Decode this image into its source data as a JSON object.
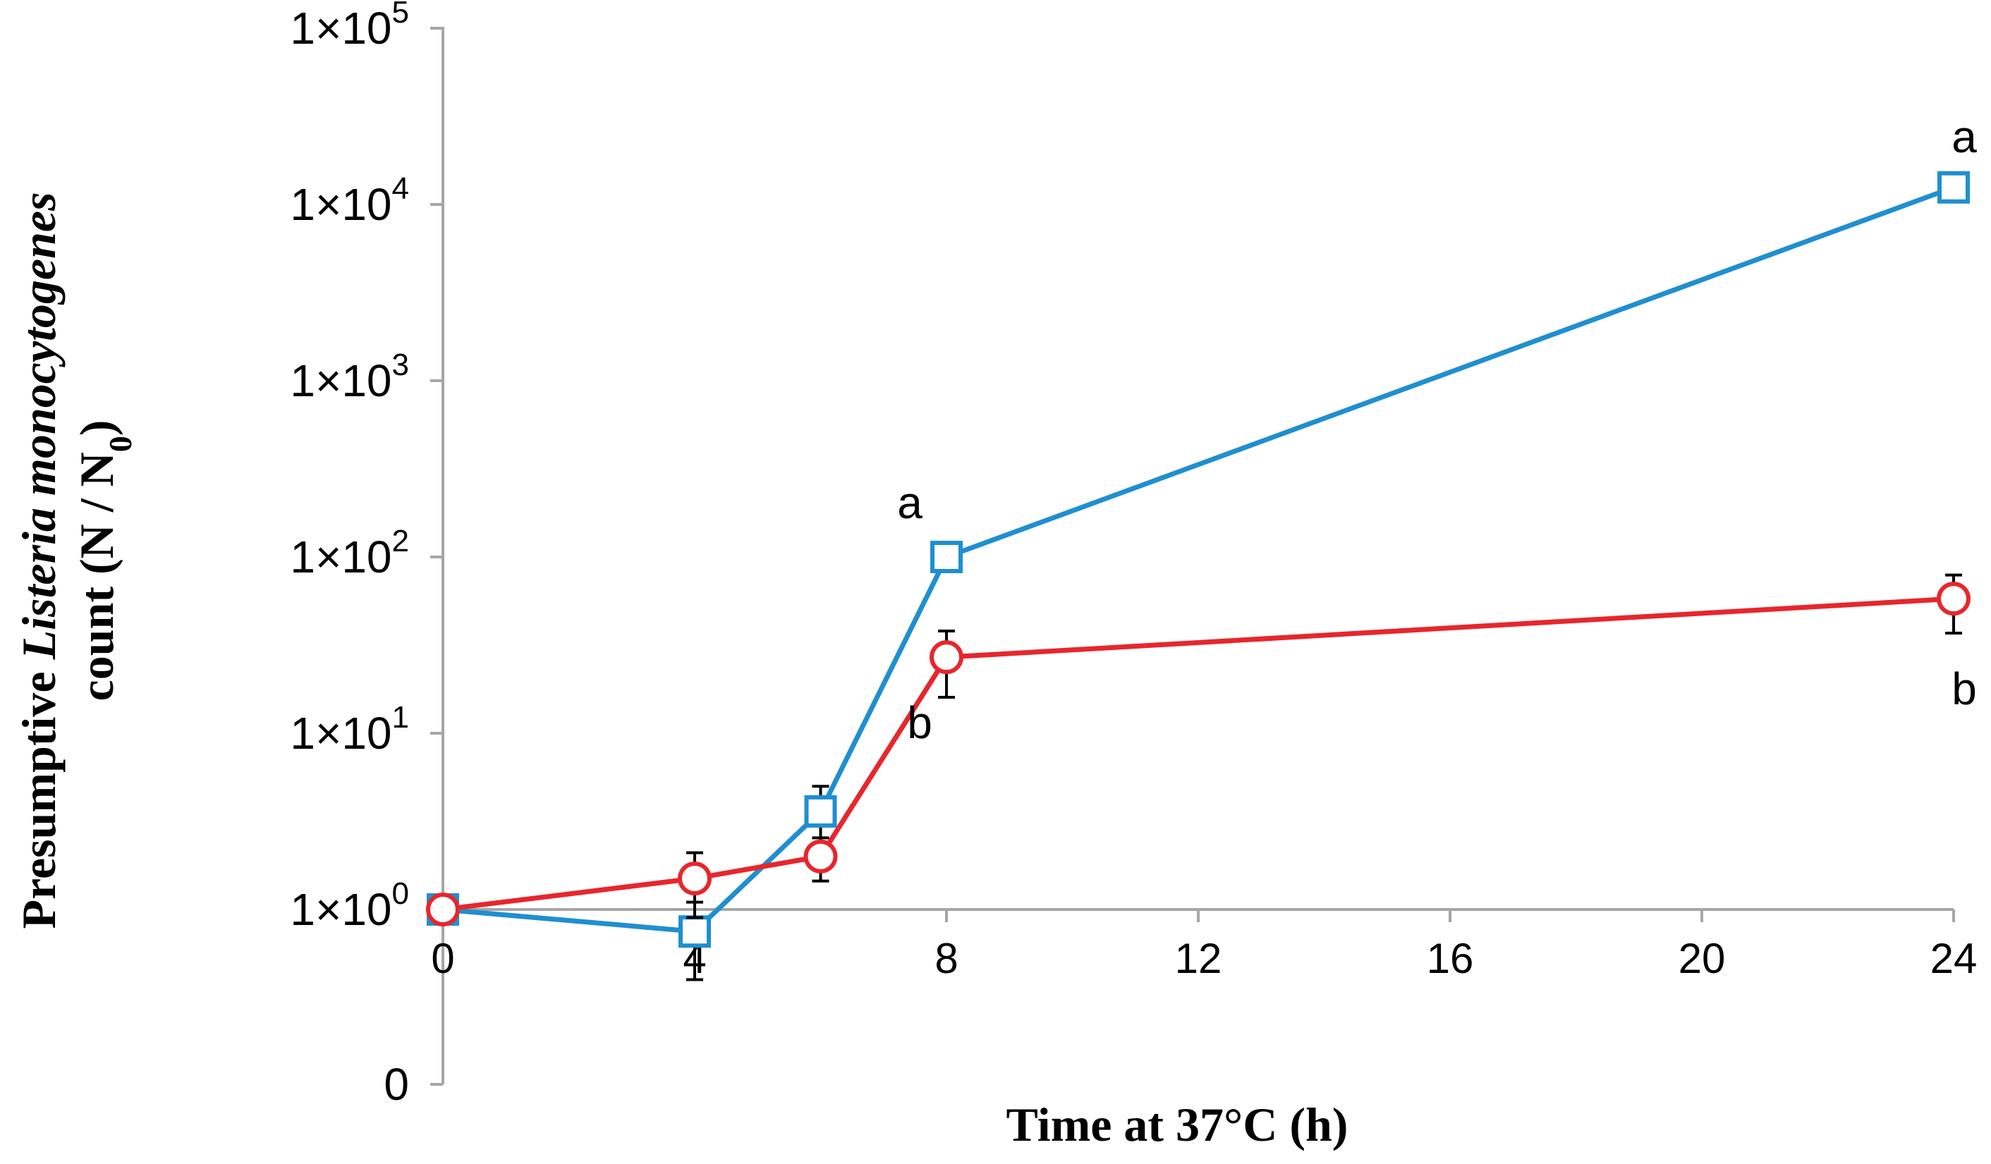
{
  "chart_data": {
    "type": "line",
    "yscale": "log",
    "title": "",
    "xlabel": "Time at 37°C (h)",
    "ylabel_line1": {
      "prefix": "Presumptive ",
      "italic": "Listeria monocytogenes"
    },
    "ylabel_line2": {
      "text": "count (N / N",
      "sub": "0",
      "suffix": ")"
    },
    "xlim": [
      0,
      24
    ],
    "x_ticks": [
      "0",
      "4",
      "8",
      "12",
      "16",
      "20",
      "24"
    ],
    "y_ticks": [
      {
        "label": "0"
      },
      {
        "base": "1×10",
        "exp": "0"
      },
      {
        "base": "1×10",
        "exp": "1"
      },
      {
        "base": "1×10",
        "exp": "2"
      },
      {
        "base": "1×10",
        "exp": "3"
      },
      {
        "base": "1×10",
        "exp": "4"
      },
      {
        "base": "1×10",
        "exp": "5"
      }
    ],
    "series": [
      {
        "name": "series-blue",
        "color": "#1F8FD0",
        "marker": "square",
        "points": [
          {
            "x": 0,
            "y": 1.0,
            "err": 0
          },
          {
            "x": 4,
            "y": 0.75,
            "err": 0.35
          },
          {
            "x": 6,
            "y": 3.6,
            "err": 1.4
          },
          {
            "x": 8,
            "y": 100,
            "err": 10
          },
          {
            "x": 24,
            "y": 12500,
            "err": 0
          }
        ]
      },
      {
        "name": "series-red",
        "color": "#E8262C",
        "marker": "circle",
        "points": [
          {
            "x": 0,
            "y": 1.0,
            "err": 0
          },
          {
            "x": 4,
            "y": 1.5,
            "err": 0.6
          },
          {
            "x": 6,
            "y": 2.0,
            "err": 0.55
          },
          {
            "x": 8,
            "y": 27,
            "err": 11
          },
          {
            "x": 24,
            "y": 58,
            "err": 21
          }
        ]
      }
    ],
    "annotations": [
      {
        "text": "a",
        "x": 8,
        "y": 100,
        "pos": "above-left"
      },
      {
        "text": "b",
        "x": 8,
        "y": 27,
        "pos": "below-left"
      },
      {
        "text": "a",
        "x": 24,
        "y": 12500,
        "pos": "above"
      },
      {
        "text": "b",
        "x": 24,
        "y": 58,
        "pos": "below"
      }
    ],
    "axis_color": "#A6A6A6"
  }
}
